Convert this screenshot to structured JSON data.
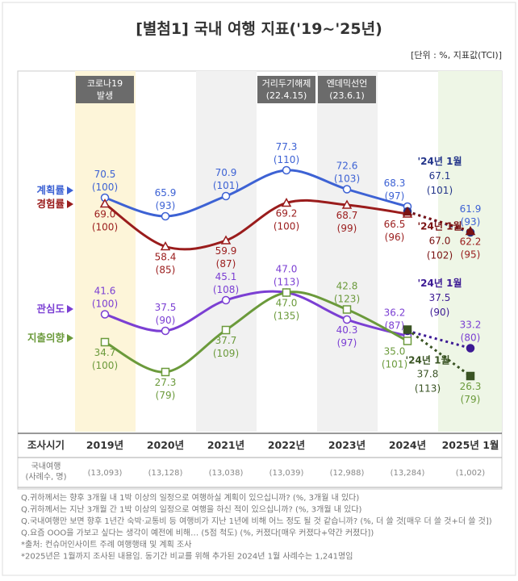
{
  "title": "[별첨1] 국내 여행 지표('19~'25년)",
  "unit": "[단위 : %, 지표값(TCI)]",
  "chart_data": {
    "type": "line",
    "categories": [
      "2019년",
      "2020년",
      "2021년",
      "2022년",
      "2023년",
      "2024년",
      "2025년 1월"
    ],
    "comparison_label": "'24년 1월",
    "series": [
      {
        "name": "계획률",
        "color": "#3d62d4",
        "dark": "#23358a",
        "marker": "circle",
        "values": [
          70.5,
          65.9,
          70.9,
          77.3,
          72.6,
          68.3,
          61.9
        ],
        "value_labels": [
          "70.5",
          "65.9",
          "70.9",
          "77.3",
          "72.6",
          "68.3",
          "61.9"
        ],
        "index_labels": [
          "(100)",
          "(93)",
          "(101)",
          "(110)",
          "(103)",
          "(97)",
          "(93)"
        ],
        "comparison_value": 67.1,
        "comparison_value_label": "67.1",
        "comparison_index_label": "(101)"
      },
      {
        "name": "경험률",
        "color": "#9a1c1c",
        "dark": "#7a1212",
        "marker": "triangle",
        "values": [
          69.0,
          58.4,
          59.9,
          69.2,
          68.7,
          66.5,
          62.2
        ],
        "value_labels": [
          "69.0",
          "58.4",
          "59.9",
          "69.2",
          "68.7",
          "66.5",
          "62.2"
        ],
        "index_labels": [
          "(100)",
          "(85)",
          "(87)",
          "(100)",
          "(99)",
          "(96)",
          "(95)"
        ],
        "comparison_value": 67.0,
        "comparison_value_label": "67.0",
        "comparison_index_label": "(102)"
      },
      {
        "name": "관심도",
        "color": "#7b3fd3",
        "dark": "#3c1a94",
        "marker": "circle",
        "values": [
          41.6,
          37.5,
          45.1,
          47.0,
          40.3,
          36.2,
          33.2
        ],
        "value_labels": [
          "41.6",
          "37.5",
          "45.1",
          "47.0",
          "40.3",
          "36.2",
          "33.2"
        ],
        "index_labels": [
          "(100)",
          "(90)",
          "(108)",
          "(113)",
          "(97)",
          "(87)",
          "(80)"
        ],
        "comparison_value": 37.5,
        "comparison_value_label": "37.5",
        "comparison_index_label": "(90)"
      },
      {
        "name": "지출의향",
        "color": "#6b9a3b",
        "dark": "#3a5424",
        "marker": "square",
        "values": [
          34.7,
          27.3,
          37.7,
          47.0,
          42.8,
          35.0,
          26.3
        ],
        "value_labels": [
          "34.7",
          "27.3",
          "37.7",
          "47.0",
          "42.8",
          "35.0",
          "26.3"
        ],
        "index_labels": [
          "(100)",
          "(79)",
          "(109)",
          "(135)",
          "(123)",
          "(101)",
          "(79)"
        ],
        "comparison_value": 37.8,
        "comparison_value_label": "37.8",
        "comparison_index_label": "(113)"
      }
    ],
    "annotations": [
      {
        "category": "2019년",
        "lines": [
          "코로나19",
          "발생"
        ]
      },
      {
        "category": "2022년",
        "lines": [
          "거리두기해제",
          "(22.4.15)"
        ]
      },
      {
        "category": "2023년",
        "lines": [
          "엔데믹선언",
          "(23.6.1)"
        ]
      }
    ]
  },
  "table": {
    "header_label": "조사시기",
    "row_label": [
      "국내여행",
      "(사례수, 명)"
    ],
    "samples": [
      "(13,093)",
      "(13,128)",
      "(13,038)",
      "(13,039)",
      "(12,988)",
      "(13,284)",
      "(1,002)"
    ]
  },
  "footnotes": [
    "Q.귀하께서는 향후 3개월 내 1박 이상의 일정으로 여행하실 계획이 있으십니까? (%, 3개월 내 있다)",
    "Q.귀하께서는 지난 3개월 간 1박 이상의 일정으로 여행을 하신 적이 있으십니까? (%, 3개월 내 있다)",
    "Q.국내여행만 보면 향후 1년간 숙박·교통비 등 여행비가 지난 1년에 비해 어느 정도 될 것 같습니까? (%, 더 쓸 것[매우 더 쓸 것+더 쓸 것])",
    "Q.요즘 OOO을 가보고 싶다는 생각이 예전에 비해… (5점 척도) (%, 커졌다[매우 커졌다+약간 커졌다])",
    "*출처: 컨슈머인사이트 주례 여행행태 및 계획 조사",
    "*2025년은 1월까지 조사된 내용임. 동기간 비교를 위해 추가된 2024년 1월 사례수는 1,241명임"
  ]
}
